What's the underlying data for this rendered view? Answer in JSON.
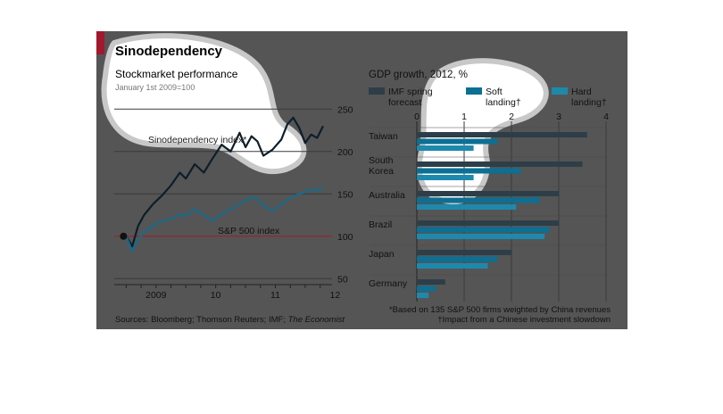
{
  "figure": {
    "title": "Sinodependency",
    "source_prefix": "Sources: Bloomberg; Thomson Reuters; IMF; ",
    "source_italic": "The Economist",
    "colors": {
      "panel_bg": "#555555",
      "accent_red": "#a3182c",
      "dark_series": "#0d1e2a",
      "teal_series": "#1a6a8a",
      "imf_bar": "#2d3e48",
      "soft_bar": "#0c6f93",
      "hard_bar": "#1d89ad",
      "highlight": "#ffffff"
    }
  },
  "chart_data": [
    {
      "type": "line",
      "title": "Stockmarket performance",
      "subtitle": "January 1st 2009=100",
      "x_tick_labels": [
        "2009",
        "10",
        "11",
        "12"
      ],
      "y_ticks": [
        50,
        100,
        150,
        200,
        250
      ],
      "ylim": [
        45,
        265
      ],
      "xlim": [
        2008.8,
        2012.45
      ],
      "series": [
        {
          "name": "Sinodependency index*",
          "color": "#0d1e2a",
          "x": [
            2009.0,
            2009.1,
            2009.2,
            2009.3,
            2009.45,
            2009.6,
            2009.75,
            2009.9,
            2010.0,
            2010.15,
            2010.3,
            2010.45,
            2010.6,
            2010.75,
            2010.9,
            2011.0,
            2011.1,
            2011.2,
            2011.3,
            2011.45,
            2011.6,
            2011.7,
            2011.8,
            2011.9,
            2012.0,
            2012.1,
            2012.2,
            2012.3
          ],
          "values": [
            100,
            88,
            112,
            125,
            138,
            148,
            160,
            175,
            168,
            185,
            175,
            192,
            208,
            200,
            222,
            205,
            218,
            212,
            195,
            202,
            214,
            232,
            240,
            228,
            210,
            220,
            216,
            230
          ]
        },
        {
          "name": "S&P 500 index",
          "color": "#1a6a8a",
          "x": [
            2009.0,
            2009.1,
            2009.2,
            2009.3,
            2009.45,
            2009.6,
            2009.75,
            2009.9,
            2010.0,
            2010.15,
            2010.3,
            2010.45,
            2010.6,
            2010.75,
            2010.9,
            2011.0,
            2011.1,
            2011.2,
            2011.3,
            2011.45,
            2011.6,
            2011.7,
            2011.8,
            2011.9,
            2012.0,
            2012.1,
            2012.2,
            2012.3
          ],
          "values": [
            100,
            82,
            96,
            105,
            112,
            118,
            120,
            126,
            124,
            132,
            125,
            118,
            126,
            132,
            138,
            142,
            146,
            144,
            136,
            130,
            138,
            143,
            147,
            150,
            152,
            156,
            154,
            158
          ]
        }
      ],
      "reference_line": 100
    },
    {
      "type": "bar",
      "title": "GDP growth, 2012, %",
      "orientation": "horizontal",
      "categories": [
        "Taiwan",
        "South Korea",
        "Australia",
        "Brazil",
        "Japan",
        "Germany"
      ],
      "category_lines": [
        [
          "Taiwan"
        ],
        [
          "South",
          "Korea"
        ],
        [
          "Australia"
        ],
        [
          "Brazil"
        ],
        [
          "Japan"
        ],
        [
          "Germany"
        ]
      ],
      "x_ticks": [
        0,
        1,
        2,
        3,
        4
      ],
      "xlim": [
        0,
        4
      ],
      "series": [
        {
          "name": "IMF spring forecast",
          "legend_lines": [
            "IMF spring",
            "forecast"
          ],
          "color": "#2d3e48",
          "values": [
            3.6,
            3.5,
            3.0,
            3.0,
            2.0,
            0.6
          ]
        },
        {
          "name": "Soft landing†",
          "legend_lines": [
            "Soft",
            "landing†"
          ],
          "color": "#0c6f93",
          "values": [
            1.7,
            2.2,
            2.6,
            2.8,
            1.7,
            0.4
          ]
        },
        {
          "name": "Hard landing†",
          "legend_lines": [
            "Hard",
            "landing†"
          ],
          "color": "#1d89ad",
          "values": [
            1.2,
            1.2,
            2.1,
            2.7,
            1.5,
            0.25
          ]
        }
      ],
      "footnotes": [
        "*Based on 135 S&P 500 firms weighted by China revenues",
        "†Impact from a Chinese investment slowdown"
      ]
    }
  ]
}
